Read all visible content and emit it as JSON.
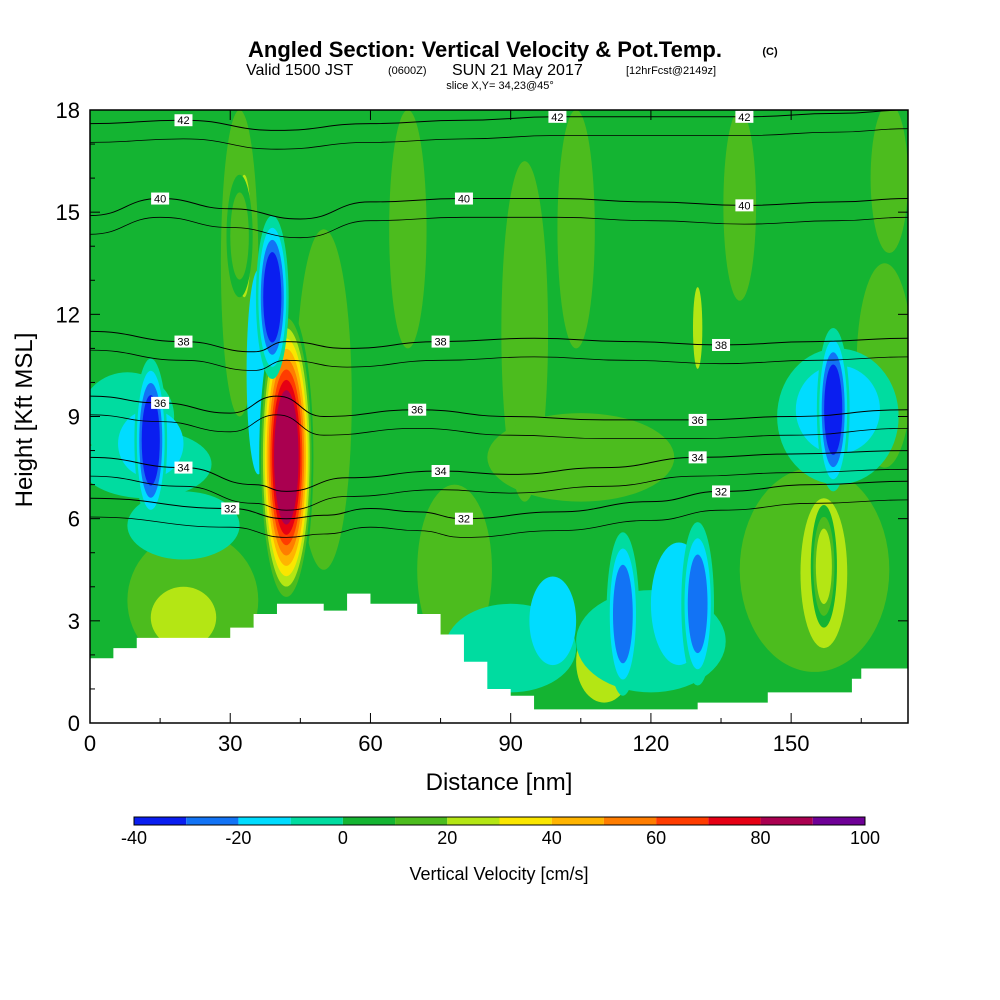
{
  "chart_data": {
    "type": "heatmap",
    "title": "Angled Section: Vertical Velocity & Pot.Temp.",
    "title_units": "(C)",
    "subtitle_prefix": "Valid 1500 JST",
    "subtitle_utc": "(0600Z)",
    "subtitle_date": "SUN 21 May 2017",
    "subtitle_fcst": "[12hrFcst@2149z]",
    "slice_label": "slice X,Y= 34,23@45°",
    "xlabel": "Distance [nm]",
    "ylabel": "Height [Kft MSL]",
    "xlim": [
      0,
      175
    ],
    "ylim": [
      0,
      18
    ],
    "x_ticks": [
      0,
      30,
      60,
      90,
      120,
      150
    ],
    "y_ticks": [
      0,
      3,
      6,
      9,
      12,
      15,
      18
    ],
    "colorbar": {
      "label": "Vertical Velocity [cm/s]",
      "bounds": [
        -40,
        -30,
        -20,
        -10,
        0,
        10,
        20,
        30,
        40,
        50,
        60,
        70,
        80,
        90,
        100
      ],
      "tick_values": [
        -40,
        -20,
        0,
        20,
        40,
        60,
        80,
        100
      ],
      "colors": [
        "#0a1ef0",
        "#1273f5",
        "#00dcff",
        "#00dca0",
        "#14b432",
        "#4cbc1e",
        "#b4e614",
        "#fae600",
        "#ffb400",
        "#ff7d00",
        "#ff3c00",
        "#e60014",
        "#aa0050",
        "#6e0096"
      ]
    },
    "velocity_features": [
      {
        "kind": "updraft",
        "x": 42,
        "z": 7.8,
        "peak": 85
      },
      {
        "kind": "downdraft",
        "x": 39,
        "z": 12.5,
        "peak": -35
      },
      {
        "kind": "downdraft",
        "x": 13,
        "z": 8.3,
        "peak": -32
      },
      {
        "kind": "downdraft",
        "x": 159,
        "z": 9.2,
        "peak": -32
      },
      {
        "kind": "downdraft",
        "x": 130,
        "z": 3.5,
        "peak": -28
      },
      {
        "kind": "downdraft",
        "x": 114,
        "z": 3.2,
        "peak": -28
      },
      {
        "kind": "updraft",
        "x": 157,
        "z": 4.6,
        "peak": 22
      },
      {
        "kind": "updraft",
        "x": 32,
        "z": 14.3,
        "peak": 18
      }
    ],
    "theta_contours": [
      {
        "label": "32",
        "points": [
          [
            0,
            6.6
          ],
          [
            30,
            6.3
          ],
          [
            42,
            6.0
          ],
          [
            50,
            6.1
          ],
          [
            60,
            6.3
          ],
          [
            70,
            6.2
          ],
          [
            80,
            6.0
          ],
          [
            100,
            6.2
          ],
          [
            120,
            6.5
          ],
          [
            135,
            6.8
          ],
          [
            155,
            7.0
          ],
          [
            175,
            7.1
          ]
        ]
      },
      {
        "label": "34",
        "points": [
          [
            0,
            7.8
          ],
          [
            20,
            7.5
          ],
          [
            35,
            7.0
          ],
          [
            42,
            6.8
          ],
          [
            55,
            7.2
          ],
          [
            75,
            7.4
          ],
          [
            90,
            7.3
          ],
          [
            110,
            7.5
          ],
          [
            130,
            7.8
          ],
          [
            150,
            7.9
          ],
          [
            175,
            8.0
          ]
        ]
      },
      {
        "label": "36",
        "points": [
          [
            0,
            9.6
          ],
          [
            15,
            9.4
          ],
          [
            30,
            9.1
          ],
          [
            40,
            9.6
          ],
          [
            50,
            9.0
          ],
          [
            70,
            9.2
          ],
          [
            90,
            9.0
          ],
          [
            110,
            8.9
          ],
          [
            130,
            8.9
          ],
          [
            150,
            9.0
          ],
          [
            175,
            9.2
          ]
        ]
      },
      {
        "label": "38",
        "points": [
          [
            0,
            11.5
          ],
          [
            20,
            11.2
          ],
          [
            35,
            10.9
          ],
          [
            42,
            11.2
          ],
          [
            55,
            11.0
          ],
          [
            75,
            11.2
          ],
          [
            95,
            11.3
          ],
          [
            115,
            11.2
          ],
          [
            135,
            11.1
          ],
          [
            155,
            11.2
          ],
          [
            175,
            11.3
          ]
        ]
      },
      {
        "label": "40",
        "points": [
          [
            0,
            14.9
          ],
          [
            15,
            15.4
          ],
          [
            30,
            15.1
          ],
          [
            45,
            14.8
          ],
          [
            60,
            15.3
          ],
          [
            80,
            15.4
          ],
          [
            100,
            15.4
          ],
          [
            120,
            15.3
          ],
          [
            140,
            15.2
          ],
          [
            160,
            15.3
          ],
          [
            175,
            15.4
          ]
        ]
      },
      {
        "label": "42",
        "points": [
          [
            0,
            17.6
          ],
          [
            20,
            17.7
          ],
          [
            40,
            17.4
          ],
          [
            60,
            17.6
          ],
          [
            80,
            17.7
          ],
          [
            100,
            17.8
          ],
          [
            120,
            17.8
          ],
          [
            140,
            17.8
          ],
          [
            160,
            17.9
          ],
          [
            175,
            18.0
          ]
        ]
      }
    ],
    "terrain": [
      [
        0,
        1.9
      ],
      [
        5,
        2.2
      ],
      [
        10,
        2.5
      ],
      [
        25,
        2.5
      ],
      [
        30,
        2.8
      ],
      [
        35,
        3.2
      ],
      [
        40,
        3.5
      ],
      [
        50,
        3.3
      ],
      [
        55,
        3.8
      ],
      [
        60,
        3.5
      ],
      [
        70,
        3.2
      ],
      [
        75,
        2.6
      ],
      [
        80,
        1.8
      ],
      [
        85,
        1.0
      ],
      [
        90,
        0.8
      ],
      [
        95,
        0.4
      ],
      [
        128,
        0.4
      ],
      [
        130,
        0.6
      ],
      [
        143,
        0.6
      ],
      [
        145,
        0.9
      ],
      [
        155,
        0.9
      ],
      [
        163,
        1.3
      ],
      [
        165,
        1.6
      ],
      [
        175,
        1.6
      ]
    ]
  }
}
